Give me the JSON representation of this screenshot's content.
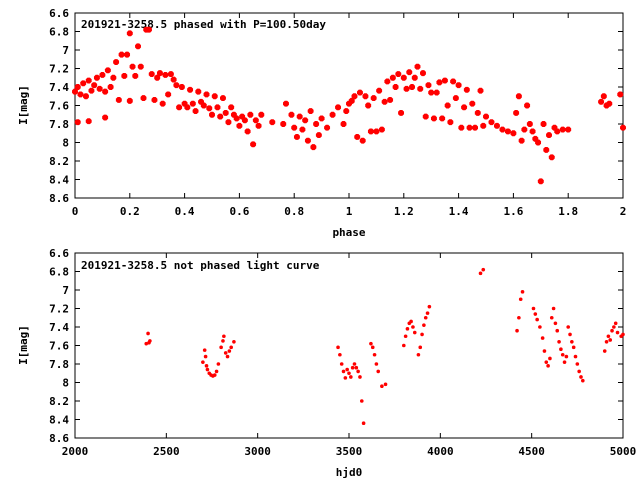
{
  "chart_data": [
    {
      "type": "scatter",
      "title": "201921-3258.5 phased with P=100.50day",
      "xlabel": "phase",
      "ylabel": "I[mag]",
      "xlim": [
        0,
        2
      ],
      "ylim": [
        8.6,
        6.6
      ],
      "y_inverted": true,
      "x_ticks": [
        "0",
        "0.2",
        "0.4",
        "0.6",
        "0.8",
        "1",
        "1.2",
        "1.4",
        "1.6",
        "1.8",
        "2"
      ],
      "y_ticks": [
        "6.6",
        "6.8",
        "7",
        "7.2",
        "7.4",
        "7.6",
        "7.8",
        "8",
        "8.2",
        "8.4",
        "8.6"
      ],
      "grid": false,
      "color": "#ff0000",
      "points": [
        [
          0.0,
          7.45
        ],
        [
          0.01,
          7.4
        ],
        [
          0.01,
          7.78
        ],
        [
          0.02,
          7.48
        ],
        [
          0.03,
          7.36
        ],
        [
          0.04,
          7.5
        ],
        [
          0.05,
          7.77
        ],
        [
          0.05,
          7.33
        ],
        [
          0.06,
          7.44
        ],
        [
          0.07,
          7.38
        ],
        [
          0.08,
          7.3
        ],
        [
          0.09,
          7.42
        ],
        [
          0.1,
          7.27
        ],
        [
          0.11,
          7.45
        ],
        [
          0.11,
          7.73
        ],
        [
          0.12,
          7.22
        ],
        [
          0.13,
          7.4
        ],
        [
          0.14,
          7.3
        ],
        [
          0.15,
          7.13
        ],
        [
          0.16,
          7.54
        ],
        [
          0.17,
          7.05
        ],
        [
          0.18,
          7.28
        ],
        [
          0.19,
          7.05
        ],
        [
          0.2,
          7.55
        ],
        [
          0.2,
          6.82
        ],
        [
          0.21,
          7.18
        ],
        [
          0.22,
          7.28
        ],
        [
          0.23,
          6.96
        ],
        [
          0.24,
          7.18
        ],
        [
          0.25,
          7.52
        ],
        [
          0.26,
          6.78
        ],
        [
          0.27,
          6.78
        ],
        [
          0.28,
          7.26
        ],
        [
          0.29,
          7.54
        ],
        [
          0.3,
          7.3
        ],
        [
          0.31,
          7.25
        ],
        [
          0.32,
          7.58
        ],
        [
          0.33,
          7.27
        ],
        [
          0.34,
          7.48
        ],
        [
          0.35,
          7.26
        ],
        [
          0.36,
          7.32
        ],
        [
          0.37,
          7.38
        ],
        [
          0.38,
          7.62
        ],
        [
          0.39,
          7.4
        ],
        [
          0.4,
          7.58
        ],
        [
          0.41,
          7.62
        ],
        [
          0.42,
          7.43
        ],
        [
          0.43,
          7.58
        ],
        [
          0.44,
          7.66
        ],
        [
          0.45,
          7.45
        ],
        [
          0.46,
          7.56
        ],
        [
          0.47,
          7.6
        ],
        [
          0.48,
          7.48
        ],
        [
          0.49,
          7.63
        ],
        [
          0.5,
          7.7
        ],
        [
          0.51,
          7.5
        ],
        [
          0.52,
          7.62
        ],
        [
          0.53,
          7.72
        ],
        [
          0.54,
          7.52
        ],
        [
          0.55,
          7.68
        ],
        [
          0.56,
          7.78
        ],
        [
          0.57,
          7.62
        ],
        [
          0.58,
          7.7
        ],
        [
          0.59,
          7.74
        ],
        [
          0.6,
          7.82
        ],
        [
          0.61,
          7.72
        ],
        [
          0.62,
          7.76
        ],
        [
          0.63,
          7.88
        ],
        [
          0.64,
          7.7
        ],
        [
          0.65,
          8.02
        ],
        [
          0.66,
          7.76
        ],
        [
          0.67,
          7.82
        ],
        [
          0.68,
          7.7
        ],
        [
          0.72,
          7.78
        ],
        [
          0.76,
          7.8
        ],
        [
          0.77,
          7.58
        ],
        [
          0.79,
          7.7
        ],
        [
          0.8,
          7.84
        ],
        [
          0.81,
          7.94
        ],
        [
          0.82,
          7.72
        ],
        [
          0.83,
          7.86
        ],
        [
          0.84,
          7.76
        ],
        [
          0.85,
          7.98
        ],
        [
          0.86,
          7.66
        ],
        [
          0.87,
          8.05
        ],
        [
          0.88,
          7.8
        ],
        [
          0.89,
          7.92
        ],
        [
          0.9,
          7.74
        ],
        [
          0.92,
          7.84
        ],
        [
          0.94,
          7.7
        ],
        [
          0.96,
          7.62
        ],
        [
          0.98,
          7.8
        ],
        [
          0.99,
          7.66
        ],
        [
          1.0,
          7.58
        ],
        [
          1.01,
          7.55
        ],
        [
          1.02,
          7.5
        ],
        [
          1.03,
          7.94
        ],
        [
          1.04,
          7.46
        ],
        [
          1.05,
          7.98
        ],
        [
          1.06,
          7.5
        ],
        [
          1.07,
          7.6
        ],
        [
          1.08,
          7.88
        ],
        [
          1.09,
          7.52
        ],
        [
          1.1,
          7.88
        ],
        [
          1.11,
          7.44
        ],
        [
          1.12,
          7.86
        ],
        [
          1.13,
          7.56
        ],
        [
          1.14,
          7.34
        ],
        [
          1.15,
          7.54
        ],
        [
          1.16,
          7.3
        ],
        [
          1.17,
          7.4
        ],
        [
          1.18,
          7.26
        ],
        [
          1.19,
          7.68
        ],
        [
          1.2,
          7.3
        ],
        [
          1.21,
          7.42
        ],
        [
          1.22,
          7.24
        ],
        [
          1.23,
          7.4
        ],
        [
          1.24,
          7.3
        ],
        [
          1.25,
          7.18
        ],
        [
          1.26,
          7.42
        ],
        [
          1.27,
          7.25
        ],
        [
          1.28,
          7.72
        ],
        [
          1.29,
          7.38
        ],
        [
          1.3,
          7.46
        ],
        [
          1.31,
          7.74
        ],
        [
          1.32,
          7.46
        ],
        [
          1.33,
          7.35
        ],
        [
          1.34,
          7.74
        ],
        [
          1.35,
          7.33
        ],
        [
          1.36,
          7.6
        ],
        [
          1.37,
          7.78
        ],
        [
          1.38,
          7.34
        ],
        [
          1.39,
          7.52
        ],
        [
          1.4,
          7.38
        ],
        [
          1.41,
          7.84
        ],
        [
          1.42,
          7.62
        ],
        [
          1.43,
          7.43
        ],
        [
          1.44,
          7.84
        ],
        [
          1.45,
          7.58
        ],
        [
          1.46,
          7.84
        ],
        [
          1.47,
          7.68
        ],
        [
          1.48,
          7.44
        ],
        [
          1.49,
          7.82
        ],
        [
          1.5,
          7.72
        ],
        [
          1.52,
          7.78
        ],
        [
          1.54,
          7.82
        ],
        [
          1.56,
          7.86
        ],
        [
          1.58,
          7.88
        ],
        [
          1.6,
          7.9
        ],
        [
          1.61,
          7.68
        ],
        [
          1.62,
          7.5
        ],
        [
          1.63,
          7.98
        ],
        [
          1.64,
          7.86
        ],
        [
          1.65,
          7.6
        ],
        [
          1.66,
          7.8
        ],
        [
          1.67,
          7.88
        ],
        [
          1.68,
          7.96
        ],
        [
          1.69,
          8.0
        ],
        [
          1.7,
          8.42
        ],
        [
          1.71,
          7.8
        ],
        [
          1.72,
          8.08
        ],
        [
          1.73,
          7.92
        ],
        [
          1.74,
          8.16
        ],
        [
          1.75,
          7.84
        ],
        [
          1.76,
          7.88
        ],
        [
          1.78,
          7.86
        ],
        [
          1.8,
          7.86
        ],
        [
          1.92,
          7.56
        ],
        [
          1.93,
          7.5
        ],
        [
          1.94,
          7.6
        ],
        [
          1.95,
          7.58
        ],
        [
          1.99,
          7.48
        ],
        [
          2.0,
          7.84
        ]
      ]
    },
    {
      "type": "scatter",
      "title": "201921-3258.5 not phased light curve",
      "xlabel": "hjd0",
      "ylabel": "I[mag]",
      "xlim": [
        2000,
        5000
      ],
      "ylim": [
        8.6,
        6.6
      ],
      "y_inverted": true,
      "x_ticks": [
        "2000",
        "2500",
        "3000",
        "3500",
        "4000",
        "4500",
        "5000"
      ],
      "y_ticks": [
        "6.6",
        "6.8",
        "7",
        "7.2",
        "7.4",
        "7.6",
        "7.8",
        "8",
        "8.2",
        "8.4",
        "8.6"
      ],
      "grid": false,
      "color": "#ff0000",
      "points": [
        [
          2390,
          7.58
        ],
        [
          2400,
          7.47
        ],
        [
          2405,
          7.57
        ],
        [
          2410,
          7.55
        ],
        [
          2700,
          7.78
        ],
        [
          2710,
          7.65
        ],
        [
          2715,
          7.72
        ],
        [
          2720,
          7.82
        ],
        [
          2725,
          7.86
        ],
        [
          2735,
          7.9
        ],
        [
          2745,
          7.92
        ],
        [
          2755,
          7.93
        ],
        [
          2765,
          7.92
        ],
        [
          2775,
          7.88
        ],
        [
          2785,
          7.8
        ],
        [
          2800,
          7.62
        ],
        [
          2810,
          7.55
        ],
        [
          2815,
          7.5
        ],
        [
          2825,
          7.68
        ],
        [
          2835,
          7.72
        ],
        [
          2845,
          7.66
        ],
        [
          2855,
          7.62
        ],
        [
          2870,
          7.56
        ],
        [
          3440,
          7.62
        ],
        [
          3450,
          7.7
        ],
        [
          3460,
          7.8
        ],
        [
          3470,
          7.88
        ],
        [
          3480,
          7.95
        ],
        [
          3490,
          7.86
        ],
        [
          3500,
          7.9
        ],
        [
          3510,
          7.94
        ],
        [
          3520,
          7.84
        ],
        [
          3530,
          7.8
        ],
        [
          3540,
          7.84
        ],
        [
          3550,
          7.88
        ],
        [
          3560,
          7.94
        ],
        [
          3570,
          8.2
        ],
        [
          3580,
          8.44
        ],
        [
          3620,
          7.58
        ],
        [
          3630,
          7.62
        ],
        [
          3640,
          7.7
        ],
        [
          3650,
          7.8
        ],
        [
          3660,
          7.88
        ],
        [
          3680,
          8.04
        ],
        [
          3700,
          8.02
        ],
        [
          3800,
          7.6
        ],
        [
          3810,
          7.5
        ],
        [
          3820,
          7.42
        ],
        [
          3830,
          7.36
        ],
        [
          3840,
          7.34
        ],
        [
          3850,
          7.4
        ],
        [
          3860,
          7.46
        ],
        [
          3880,
          7.7
        ],
        [
          3890,
          7.62
        ],
        [
          3900,
          7.48
        ],
        [
          3910,
          7.38
        ],
        [
          3920,
          7.3
        ],
        [
          3930,
          7.25
        ],
        [
          3940,
          7.18
        ],
        [
          4220,
          6.82
        ],
        [
          4235,
          6.78
        ],
        [
          4420,
          7.44
        ],
        [
          4430,
          7.3
        ],
        [
          4440,
          7.1
        ],
        [
          4450,
          7.02
        ],
        [
          4510,
          7.2
        ],
        [
          4520,
          7.26
        ],
        [
          4530,
          7.32
        ],
        [
          4545,
          7.4
        ],
        [
          4560,
          7.52
        ],
        [
          4570,
          7.66
        ],
        [
          4580,
          7.78
        ],
        [
          4590,
          7.82
        ],
        [
          4600,
          7.74
        ],
        [
          4610,
          7.3
        ],
        [
          4620,
          7.2
        ],
        [
          4630,
          7.36
        ],
        [
          4640,
          7.44
        ],
        [
          4650,
          7.56
        ],
        [
          4660,
          7.64
        ],
        [
          4670,
          7.7
        ],
        [
          4680,
          7.78
        ],
        [
          4690,
          7.72
        ],
        [
          4700,
          7.4
        ],
        [
          4710,
          7.48
        ],
        [
          4720,
          7.56
        ],
        [
          4730,
          7.62
        ],
        [
          4740,
          7.72
        ],
        [
          4750,
          7.8
        ],
        [
          4760,
          7.88
        ],
        [
          4770,
          7.94
        ],
        [
          4780,
          7.98
        ],
        [
          4900,
          7.66
        ],
        [
          4910,
          7.56
        ],
        [
          4920,
          7.5
        ],
        [
          4930,
          7.54
        ],
        [
          4940,
          7.44
        ],
        [
          4950,
          7.4
        ],
        [
          4960,
          7.36
        ],
        [
          4970,
          7.46
        ],
        [
          4990,
          7.5
        ],
        [
          5000,
          7.48
        ]
      ]
    }
  ]
}
